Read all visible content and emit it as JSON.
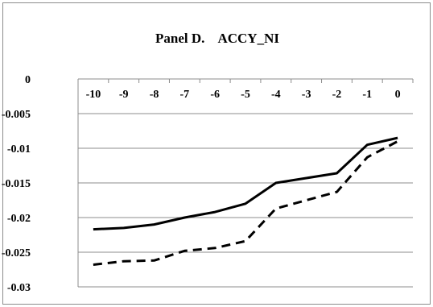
{
  "chart_data": {
    "type": "line",
    "title": "Panel D.    ACCY_NI",
    "xlabel": "",
    "ylabel": "",
    "categories": [
      "-10",
      "-9",
      "-8",
      "-7",
      "-6",
      "-5",
      "-4",
      "-3",
      "-2",
      "-1",
      "0"
    ],
    "y_ticks": [
      "0",
      "-0.005",
      "-0.01",
      "-0.015",
      "-0.02",
      "-0.025",
      "-0.03"
    ],
    "ylim": [
      -0.03,
      0
    ],
    "grid": true,
    "legend": "none",
    "series": [
      {
        "style": "solid",
        "values": [
          -0.0217,
          -0.0215,
          -0.021,
          -0.02,
          -0.0192,
          -0.018,
          -0.015,
          -0.0143,
          -0.0136,
          -0.0095,
          -0.0085
        ]
      },
      {
        "style": "dashed",
        "values": [
          -0.0268,
          -0.0263,
          -0.0262,
          -0.0248,
          -0.0244,
          -0.0234,
          -0.0187,
          -0.0175,
          -0.0163,
          -0.0113,
          -0.009
        ]
      }
    ],
    "colors": {
      "line": "#000000",
      "grid": "#8c8c8c",
      "frame": "#8c8c8c"
    }
  }
}
